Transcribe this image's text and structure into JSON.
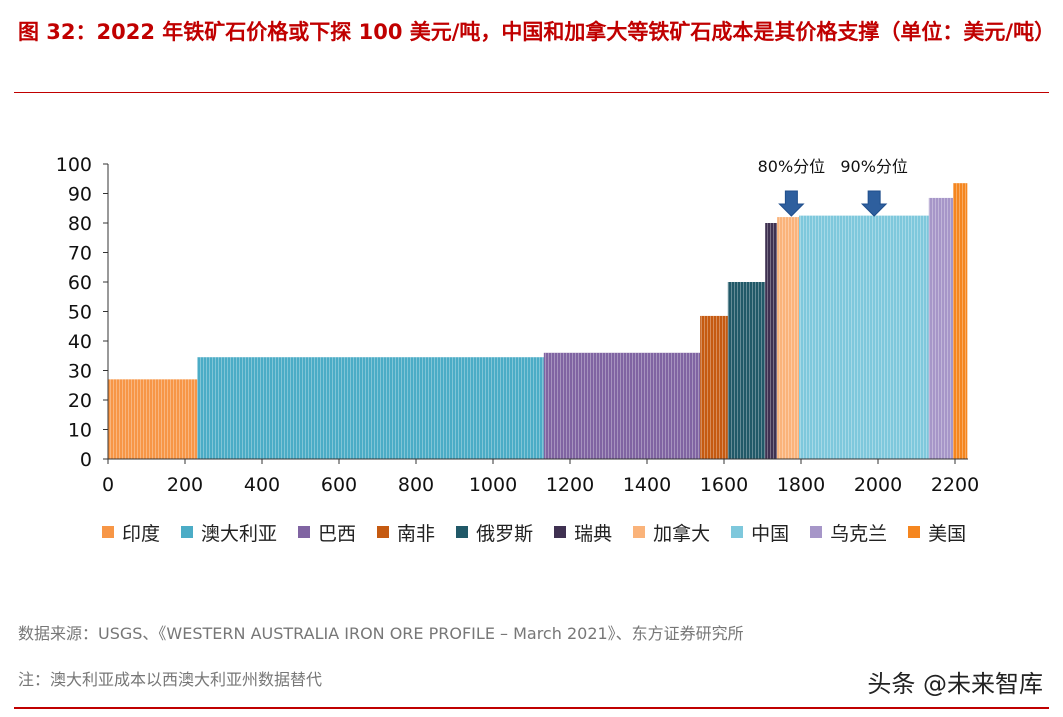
{
  "title": "图 32：2022 年铁矿石价格或下探 100 美元/吨，中国和加拿大等铁矿石成本是其价格支撑（单位：美元/吨）",
  "source": "数据来源：USGS、《WESTERN AUSTRALIA IRON ORE PROFILE – March 2021》、东方证券研究所",
  "note": "注：澳大利亚成本以西澳大利亚州数据替代",
  "watermark": "头条 @未来智库",
  "chart_data": {
    "type": "bar",
    "subtype": "cost-curve",
    "title": "",
    "xlabel": "",
    "ylabel": "",
    "xlim": [
      0,
      2200
    ],
    "ylim": [
      0,
      100
    ],
    "x_ticks": [
      "0",
      "200",
      "400",
      "600",
      "800",
      "1000",
      "1200",
      "1400",
      "1600",
      "1800",
      "2000",
      "2200"
    ],
    "y_ticks": [
      "0",
      "10",
      "20",
      "30",
      "40",
      "50",
      "60",
      "70",
      "80",
      "90",
      "100"
    ],
    "grid": false,
    "legend_position": "bottom",
    "segments": [
      {
        "name": "印度",
        "x_start": 0,
        "x_end": 232,
        "value": 27,
        "color": "#f79646"
      },
      {
        "name": "澳大利亚",
        "x_start": 232,
        "x_end": 1132,
        "value": 34.5,
        "color": "#4bacc6"
      },
      {
        "name": "巴西",
        "x_start": 1132,
        "x_end": 1538,
        "value": 36,
        "color": "#8064a2"
      },
      {
        "name": "南非",
        "x_start": 1538,
        "x_end": 1610,
        "value": 48.5,
        "color": "#c55a11"
      },
      {
        "name": "俄罗斯",
        "x_start": 1610,
        "x_end": 1707,
        "value": 60,
        "color": "#215968"
      },
      {
        "name": "瑞典",
        "x_start": 1707,
        "x_end": 1738,
        "value": 80,
        "color": "#3f3151"
      },
      {
        "name": "加拿大",
        "x_start": 1738,
        "x_end": 1795,
        "value": 82,
        "color": "#fab37a"
      },
      {
        "name": "中国",
        "x_start": 1795,
        "x_end": 2132,
        "value": 82.5,
        "color": "#7ec8dc"
      },
      {
        "name": "乌克兰",
        "x_start": 2132,
        "x_end": 2195,
        "value": 88.5,
        "color": "#a696c8"
      },
      {
        "name": "美国",
        "x_start": 2195,
        "x_end": 2232,
        "value": 93.5,
        "color": "#f5861f"
      }
    ],
    "annotations": [
      {
        "label": "80%分位",
        "x": 1775
      },
      {
        "label": "90%分位",
        "x": 1990
      }
    ]
  }
}
